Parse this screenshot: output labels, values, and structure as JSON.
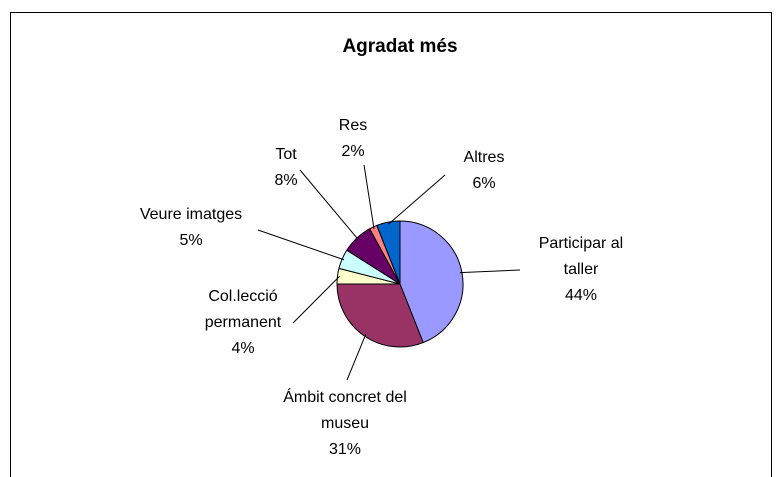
{
  "chart_data": {
    "type": "pie",
    "title": "Agradat més",
    "categories": [
      "Participar al taller",
      "Ámbit concret del museu",
      "Col.lecció permanent",
      "Veure imatges",
      "Tot",
      "Res",
      "Altres"
    ],
    "values": [
      44,
      31,
      4,
      5,
      8,
      2,
      6
    ],
    "value_labels": [
      "44%",
      "31%",
      "4%",
      "5%",
      "8%",
      "2%",
      "6%"
    ],
    "colors": [
      "#9999ff",
      "#993366",
      "#ffffcc",
      "#ccffff",
      "#660066",
      "#ff8080",
      "#0066cc"
    ]
  }
}
